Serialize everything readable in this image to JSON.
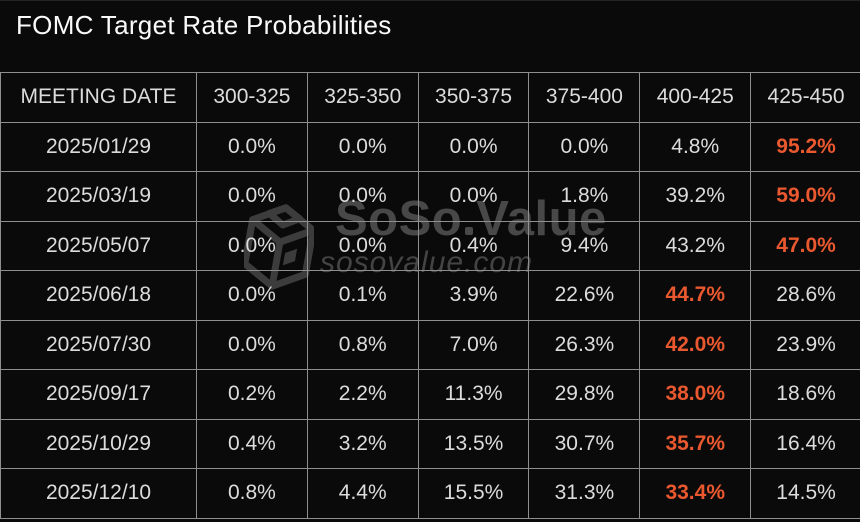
{
  "title": "FOMC Target Rate Probabilities",
  "watermark": {
    "brand_part1": "SoSo",
    "brand_part2": "Value",
    "domain": "sosovalue.com"
  },
  "colors": {
    "background": "#0a0a0a",
    "title_text": "#fafafa",
    "cell_text": "#dcdcdc",
    "table_border": "#8f8f8f",
    "highlight": "#e9582f",
    "watermark_brand": "#484848",
    "watermark_domain": "#444444"
  },
  "chart_data": {
    "type": "table",
    "title": "FOMC Target Rate Probabilities",
    "columns": [
      "MEETING DATE",
      "300-325",
      "325-350",
      "350-375",
      "375-400",
      "400-425",
      "425-450"
    ],
    "rows": [
      {
        "meeting_date": "2025/01/29",
        "probabilities": [
          "0.0%",
          "0.0%",
          "0.0%",
          "0.0%",
          "4.8%",
          "95.2%"
        ],
        "highlight_index": 5
      },
      {
        "meeting_date": "2025/03/19",
        "probabilities": [
          "0.0%",
          "0.0%",
          "0.0%",
          "1.8%",
          "39.2%",
          "59.0%"
        ],
        "highlight_index": 5
      },
      {
        "meeting_date": "2025/05/07",
        "probabilities": [
          "0.0%",
          "0.0%",
          "0.4%",
          "9.4%",
          "43.2%",
          "47.0%"
        ],
        "highlight_index": 5
      },
      {
        "meeting_date": "2025/06/18",
        "probabilities": [
          "0.0%",
          "0.1%",
          "3.9%",
          "22.6%",
          "44.7%",
          "28.6%"
        ],
        "highlight_index": 4
      },
      {
        "meeting_date": "2025/07/30",
        "probabilities": [
          "0.0%",
          "0.8%",
          "7.0%",
          "26.3%",
          "42.0%",
          "23.9%"
        ],
        "highlight_index": 4
      },
      {
        "meeting_date": "2025/09/17",
        "probabilities": [
          "0.2%",
          "2.2%",
          "11.3%",
          "29.8%",
          "38.0%",
          "18.6%"
        ],
        "highlight_index": 4
      },
      {
        "meeting_date": "2025/10/29",
        "probabilities": [
          "0.4%",
          "3.2%",
          "13.5%",
          "30.7%",
          "35.7%",
          "16.4%"
        ],
        "highlight_index": 4
      },
      {
        "meeting_date": "2025/12/10",
        "probabilities": [
          "0.8%",
          "4.4%",
          "15.5%",
          "31.3%",
          "33.4%",
          "14.5%"
        ],
        "highlight_index": 4
      }
    ]
  }
}
